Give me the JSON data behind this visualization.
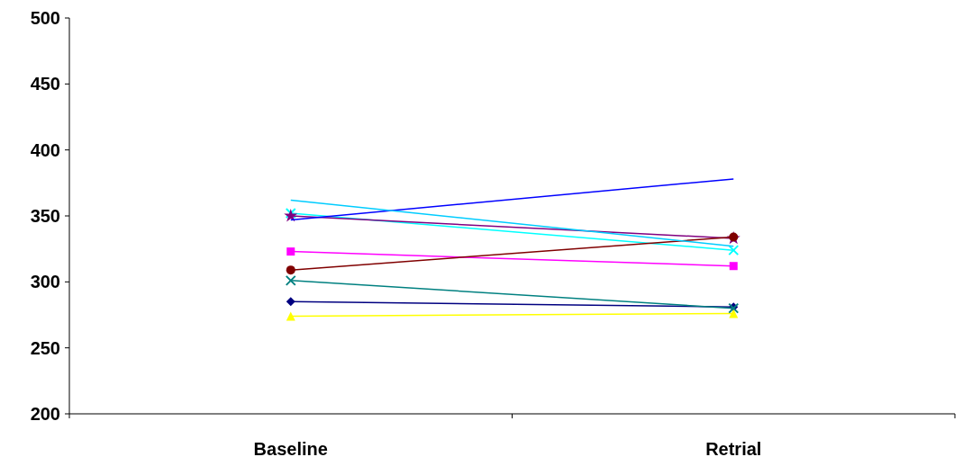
{
  "chart_data": {
    "type": "line",
    "categories": [
      "Baseline",
      "Retrial"
    ],
    "ylim": [
      200,
      500
    ],
    "yticks": [
      200,
      250,
      300,
      350,
      400,
      450,
      500
    ],
    "grid": false,
    "series": [
      {
        "color": "#000080",
        "marker": "diamond",
        "values": [
          285,
          281
        ]
      },
      {
        "color": "#ff00ff",
        "marker": "square",
        "values": [
          323,
          312
        ]
      },
      {
        "color": "#ffff00",
        "marker": "triangle",
        "values": [
          274,
          276
        ]
      },
      {
        "color": "#00ffff",
        "marker": "cross",
        "values": [
          352,
          324
        ]
      },
      {
        "color": "#800080",
        "marker": "star",
        "values": [
          350,
          333
        ]
      },
      {
        "color": "#800000",
        "marker": "circle",
        "values": [
          309,
          334
        ]
      },
      {
        "color": "#008080",
        "marker": "cross",
        "values": [
          301,
          280
        ]
      },
      {
        "color": "#0000ff",
        "marker": "none",
        "values": [
          347,
          378
        ]
      },
      {
        "color": "#00ccff",
        "marker": "none",
        "values": [
          362,
          327
        ]
      }
    ]
  }
}
